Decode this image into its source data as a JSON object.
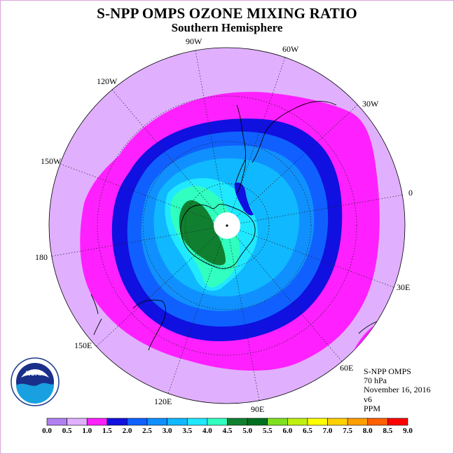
{
  "title": "S-NPP OMPS OZONE MIXING RATIO",
  "subtitle": "Southern Hemisphere",
  "longitude_labels": {
    "lon_90w": "90W",
    "lon_60w": "60W",
    "lon_30w": "30W",
    "lon_0": "0",
    "lon_30e": "30E",
    "lon_60e": "60E",
    "lon_90e": "90E",
    "lon_120e": "120E",
    "lon_150e": "150E",
    "lon_180": "180",
    "lon_150w": "150W",
    "lon_120w": "120W"
  },
  "info": {
    "instrument": "S-NPP OMPS",
    "level": "70 hPa",
    "date": "November 16, 2016",
    "version": "v6",
    "units": "PPM"
  },
  "colorbar": {
    "ticks": [
      "0.0",
      "0.5",
      "1.0",
      "1.5",
      "2.0",
      "2.5",
      "3.0",
      "3.5",
      "4.0",
      "4.5",
      "5.0",
      "5.5",
      "6.0",
      "6.5",
      "7.0",
      "7.5",
      "8.0",
      "8.5",
      "9.0"
    ],
    "colors": [
      "#b080f0",
      "#e0b0ff",
      "#ff20ff",
      "#1010e0",
      "#1060ff",
      "#1090ff",
      "#10b8ff",
      "#20e8ff",
      "#30ffc0",
      "#108030",
      "#007020",
      "#80e020",
      "#c0f010",
      "#ffff00",
      "#ffd000",
      "#ffa000",
      "#ff6000",
      "#ff0000",
      "#906040"
    ]
  },
  "colors": {
    "background_ring": "#e0b0ff",
    "magenta": "#ff20ff",
    "blue_dark": "#1010e0",
    "blue": "#1060ff",
    "blue_mid": "#1090ff",
    "sky": "#10b8ff",
    "cyan": "#20e8ff",
    "aqua": "#30ffc0",
    "green_dark": "#108030"
  },
  "logo": {
    "text": "NOAA"
  }
}
